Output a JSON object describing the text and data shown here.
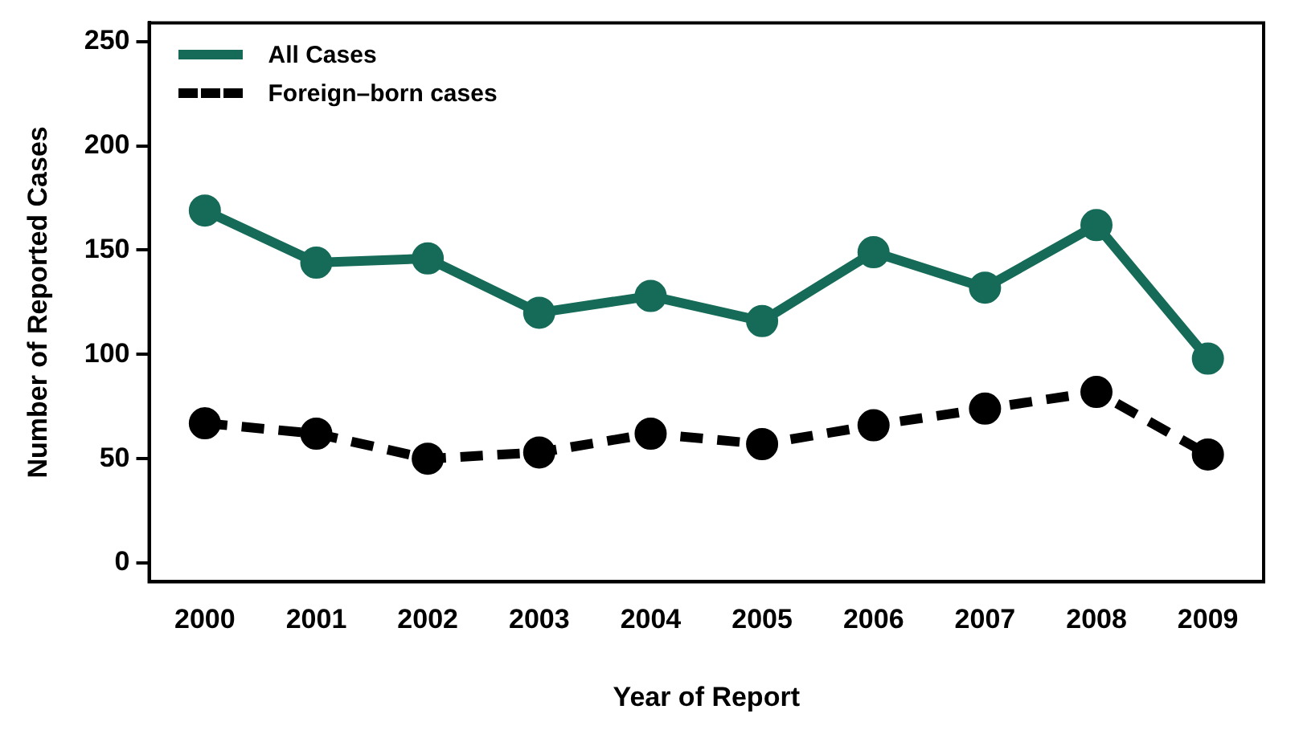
{
  "chart_data": {
    "type": "line",
    "xlabel": "Year of Report",
    "ylabel": "Number of Reported Cases",
    "categories": [
      "2000",
      "2001",
      "2002",
      "2003",
      "2004",
      "2005",
      "2006",
      "2007",
      "2008",
      "2009"
    ],
    "series": [
      {
        "name": "All Cases",
        "color": "#156b58",
        "values": [
          169,
          144,
          146,
          120,
          128,
          116,
          149,
          132,
          162,
          98
        ],
        "line_style": "solid"
      },
      {
        "name": "Foreign–born cases",
        "color": "#000000",
        "values": [
          67,
          62,
          50,
          53,
          62,
          57,
          66,
          74,
          82,
          52
        ],
        "line_style": "dashed"
      }
    ],
    "ylim": [
      -9,
      259
    ],
    "yticks": [
      0,
      50,
      100,
      150,
      200,
      250
    ],
    "grid": false,
    "legend": "top left",
    "marker": "circle"
  }
}
